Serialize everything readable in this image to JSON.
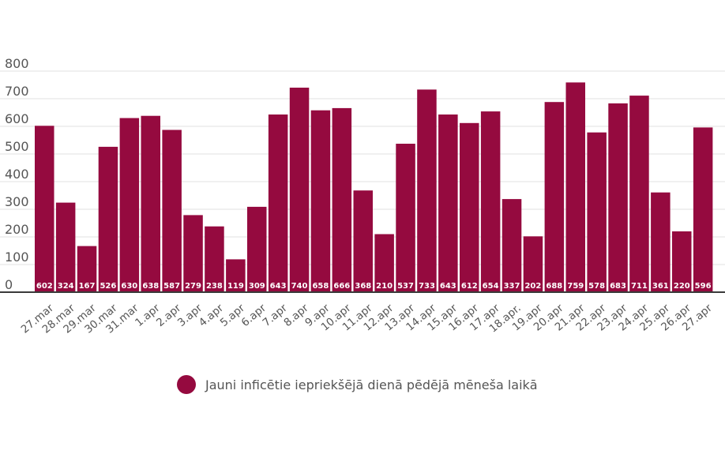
{
  "chart_data": {
    "type": "bar",
    "categories": [
      "27.mar",
      "28.mar",
      "29.mar",
      "30.mar",
      "31.mar",
      "1.apr",
      "2.apr",
      "3.apr",
      "4.apr",
      "5.apr",
      "6.apr",
      "7.apr",
      "8.apr",
      "9.apr",
      "10.apr",
      "11.apr",
      "12.apr",
      "13.apr",
      "14.apr",
      "15.apr",
      "16.apr",
      "17.apr",
      "18.apr.",
      "19.apr",
      "20.apr",
      "21.apr",
      "22.apr",
      "23.apr",
      "24.apr",
      "25.apr",
      "26.apr",
      "27.apr"
    ],
    "values": [
      602,
      324,
      167,
      526,
      630,
      638,
      587,
      279,
      238,
      119,
      309,
      643,
      740,
      658,
      666,
      368,
      210,
      537,
      733,
      643,
      612,
      654,
      337,
      202,
      688,
      759,
      578,
      683,
      711,
      361,
      220,
      596
    ],
    "ylim": [
      0,
      800
    ],
    "yticks": [
      0,
      100,
      200,
      300,
      400,
      500,
      600,
      700,
      800
    ],
    "grid": true,
    "legend_position": "bottom",
    "legend": [
      "Jauni inficētie iepriekšējā dienā pēdējā mēneša laikā"
    ],
    "colors": {
      "bar": "#950a3f",
      "value_label": "#ffffff"
    }
  }
}
